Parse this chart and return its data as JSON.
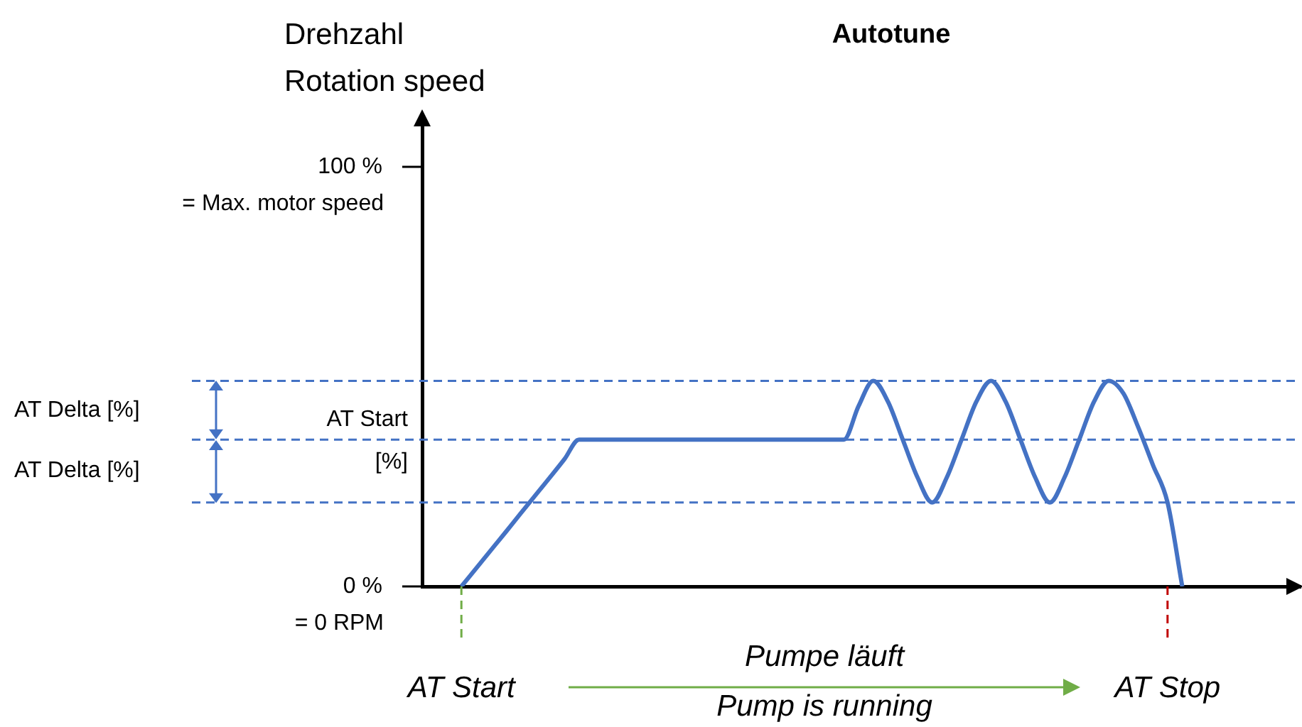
{
  "chart_data": {
    "type": "line",
    "title": "Autotune",
    "ylabel": "Drehzahl\nRotation speed",
    "categories": [
      null,
      null,
      null,
      null,
      null,
      null,
      null,
      null,
      null,
      null,
      null,
      null,
      null,
      null,
      null,
      null,
      null,
      null,
      null,
      null,
      null,
      null,
      null,
      null,
      null,
      null,
      null,
      null,
      null,
      null,
      null,
      null,
      null,
      null,
      null,
      null,
      null,
      null,
      null,
      null,
      null,
      null,
      null,
      null,
      null,
      null,
      null,
      null,
      null,
      null
    ],
    "series": [
      {
        "color": "#4472c4",
        "values": [
          0,
          4.3,
          8.6,
          12.9,
          17.3,
          21.6,
          25.9,
          30.3,
          35,
          35,
          35,
          35,
          35,
          35,
          35,
          35,
          35,
          35,
          35,
          35,
          35,
          35,
          35,
          35,
          35,
          35,
          35,
          43,
          49,
          44,
          35,
          26,
          20,
          26,
          35,
          44,
          49,
          44,
          35,
          26,
          20,
          26,
          35,
          44,
          49,
          46,
          38,
          29,
          20,
          0
        ]
      }
    ],
    "ylim": [
      0,
      111
    ],
    "yticks": [
      {
        "value": 0,
        "label": "0 %"
      },
      {
        "value": 100,
        "label": "100 %"
      }
    ],
    "ref_lines": [
      {
        "axis": "y",
        "value": 49,
        "label": null,
        "color": "#4472c4",
        "line_style": "dashed"
      },
      {
        "axis": "y",
        "value": 35,
        "label": "AT Start\n[%]",
        "color": "#4472c4",
        "line_style": "dashed"
      },
      {
        "axis": "y",
        "value": 20,
        "label": null,
        "color": "#4472c4",
        "line_style": "dashed"
      }
    ],
    "annotations": [
      "AT Delta [%]",
      "AT Delta [%]",
      "Pumpe läuft\nPump is running",
      "= Max. motor speed",
      "= 0 RPM",
      "AT Start",
      "AT Stop"
    ],
    "grid": false,
    "legend": false,
    "marker": "none",
    "line_style": "solid"
  }
}
